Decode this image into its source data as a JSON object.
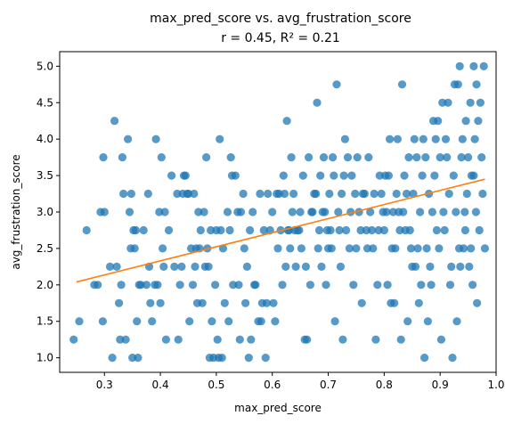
{
  "chart_data": {
    "type": "scatter",
    "title": "max_pred_score vs. avg_frustration_score",
    "subtitle": "r = 0.45,  R² = 0.21",
    "xlabel": "max_pred_score",
    "ylabel": "avg_frustration_score",
    "xlim": [
      0.22,
      1.0
    ],
    "ylim": [
      0.8,
      5.2
    ],
    "x_ticks": [
      0.3,
      0.4,
      0.5,
      0.6,
      0.7,
      0.8,
      0.9,
      1.0
    ],
    "x_tick_labels": [
      "0.3",
      "0.4",
      "0.5",
      "0.6",
      "0.7",
      "0.8",
      "0.9",
      "1.0"
    ],
    "y_ticks": [
      1.0,
      1.5,
      2.0,
      2.5,
      3.0,
      3.5,
      4.0,
      4.5,
      5.0
    ],
    "y_tick_labels": [
      "1.0",
      "1.5",
      "2.0",
      "2.5",
      "3.0",
      "3.5",
      "4.0",
      "4.5",
      "5.0"
    ],
    "grid": false,
    "point_color": "#1f77b4",
    "line_color": "#ff7f0e",
    "fit_line": {
      "x": [
        0.25,
        0.98
      ],
      "y": [
        2.04,
        3.45
      ]
    },
    "points": [
      [
        0.245,
        1.25
      ],
      [
        0.255,
        1.5
      ],
      [
        0.268,
        2.75
      ],
      [
        0.282,
        2.0
      ],
      [
        0.288,
        2.0
      ],
      [
        0.293,
        3.0
      ],
      [
        0.297,
        1.5
      ],
      [
        0.298,
        3.75
      ],
      [
        0.3,
        3.0
      ],
      [
        0.31,
        2.25
      ],
      [
        0.314,
        1.0
      ],
      [
        0.318,
        4.25
      ],
      [
        0.322,
        2.25
      ],
      [
        0.326,
        1.75
      ],
      [
        0.328,
        1.25
      ],
      [
        0.33,
        2.0
      ],
      [
        0.332,
        3.75
      ],
      [
        0.334,
        3.25
      ],
      [
        0.338,
        1.25
      ],
      [
        0.342,
        4.0
      ],
      [
        0.345,
        3.0
      ],
      [
        0.347,
        2.5
      ],
      [
        0.348,
        3.25
      ],
      [
        0.35,
        1.0
      ],
      [
        0.352,
        2.75
      ],
      [
        0.354,
        2.5
      ],
      [
        0.356,
        2.75
      ],
      [
        0.358,
        1.5
      ],
      [
        0.36,
        1.0
      ],
      [
        0.362,
        2.0
      ],
      [
        0.365,
        2.0
      ],
      [
        0.37,
        2.75
      ],
      [
        0.375,
        2.0
      ],
      [
        0.378,
        3.25
      ],
      [
        0.38,
        2.25
      ],
      [
        0.382,
        1.75
      ],
      [
        0.385,
        1.5
      ],
      [
        0.39,
        2.0
      ],
      [
        0.392,
        4.0
      ],
      [
        0.395,
        2.0
      ],
      [
        0.398,
        3.0
      ],
      [
        0.4,
        1.75
      ],
      [
        0.402,
        3.75
      ],
      [
        0.404,
        2.5
      ],
      [
        0.406,
        2.25
      ],
      [
        0.408,
        3.0
      ],
      [
        0.41,
        1.25
      ],
      [
        0.415,
        2.75
      ],
      [
        0.42,
        3.5
      ],
      [
        0.425,
        2.25
      ],
      [
        0.43,
        3.25
      ],
      [
        0.432,
        1.25
      ],
      [
        0.435,
        2.0
      ],
      [
        0.438,
        2.25
      ],
      [
        0.44,
        3.25
      ],
      [
        0.442,
        3.5
      ],
      [
        0.445,
        3.5
      ],
      [
        0.448,
        3.25
      ],
      [
        0.45,
        3.25
      ],
      [
        0.452,
        1.5
      ],
      [
        0.455,
        2.5
      ],
      [
        0.458,
        2.0
      ],
      [
        0.46,
        3.25
      ],
      [
        0.462,
        2.25
      ],
      [
        0.464,
        2.5
      ],
      [
        0.466,
        1.75
      ],
      [
        0.468,
        3.0
      ],
      [
        0.47,
        2.5
      ],
      [
        0.472,
        2.75
      ],
      [
        0.475,
        1.75
      ],
      [
        0.478,
        3.0
      ],
      [
        0.48,
        2.25
      ],
      [
        0.482,
        3.75
      ],
      [
        0.484,
        2.5
      ],
      [
        0.486,
        2.25
      ],
      [
        0.488,
        1.0
      ],
      [
        0.49,
        2.75
      ],
      [
        0.492,
        1.5
      ],
      [
        0.495,
        1.0
      ],
      [
        0.498,
        2.0
      ],
      [
        0.5,
        2.75
      ],
      [
        0.502,
        1.25
      ],
      [
        0.504,
        1.0
      ],
      [
        0.506,
        4.0
      ],
      [
        0.508,
        2.75
      ],
      [
        0.51,
        1.0
      ],
      [
        0.512,
        2.5
      ],
      [
        0.515,
        1.75
      ],
      [
        0.52,
        3.0
      ],
      [
        0.522,
        1.5
      ],
      [
        0.524,
        2.75
      ],
      [
        0.526,
        3.75
      ],
      [
        0.528,
        3.5
      ],
      [
        0.53,
        2.0
      ],
      [
        0.534,
        3.5
      ],
      [
        0.538,
        3.0
      ],
      [
        0.54,
        2.0
      ],
      [
        0.542,
        1.25
      ],
      [
        0.544,
        3.0
      ],
      [
        0.548,
        3.25
      ],
      [
        0.55,
        2.5
      ],
      [
        0.552,
        1.75
      ],
      [
        0.555,
        2.25
      ],
      [
        0.558,
        1.0
      ],
      [
        0.56,
        2.75
      ],
      [
        0.562,
        1.25
      ],
      [
        0.565,
        3.0
      ],
      [
        0.568,
        2.0
      ],
      [
        0.57,
        2.0
      ],
      [
        0.575,
        1.5
      ],
      [
        0.578,
        3.25
      ],
      [
        0.58,
        1.5
      ],
      [
        0.582,
        1.75
      ],
      [
        0.585,
        2.75
      ],
      [
        0.588,
        1.0
      ],
      [
        0.59,
        1.75
      ],
      [
        0.592,
        3.25
      ],
      [
        0.596,
        2.75
      ],
      [
        0.6,
        3.0
      ],
      [
        0.602,
        1.75
      ],
      [
        0.605,
        1.5
      ],
      [
        0.608,
        3.25
      ],
      [
        0.61,
        2.5
      ],
      [
        0.612,
        3.25
      ],
      [
        0.615,
        2.75
      ],
      [
        0.618,
        2.0
      ],
      [
        0.62,
        3.5
      ],
      [
        0.622,
        3.25
      ],
      [
        0.624,
        2.25
      ],
      [
        0.626,
        4.25
      ],
      [
        0.628,
        2.75
      ],
      [
        0.63,
        2.75
      ],
      [
        0.632,
        2.5
      ],
      [
        0.634,
        3.75
      ],
      [
        0.636,
        3.0
      ],
      [
        0.638,
        3.25
      ],
      [
        0.64,
        2.75
      ],
      [
        0.642,
        2.25
      ],
      [
        0.645,
        2.75
      ],
      [
        0.648,
        2.75
      ],
      [
        0.65,
        3.0
      ],
      [
        0.652,
        2.5
      ],
      [
        0.655,
        3.5
      ],
      [
        0.658,
        1.25
      ],
      [
        0.66,
        2.25
      ],
      [
        0.662,
        1.25
      ],
      [
        0.665,
        3.75
      ],
      [
        0.668,
        2.0
      ],
      [
        0.67,
        3.0
      ],
      [
        0.672,
        3.0
      ],
      [
        0.675,
        3.25
      ],
      [
        0.678,
        3.25
      ],
      [
        0.68,
        4.5
      ],
      [
        0.682,
        2.5
      ],
      [
        0.684,
        2.75
      ],
      [
        0.686,
        3.5
      ],
      [
        0.688,
        2.25
      ],
      [
        0.69,
        3.0
      ],
      [
        0.692,
        3.75
      ],
      [
        0.694,
        3.0
      ],
      [
        0.696,
        2.0
      ],
      [
        0.698,
        2.75
      ],
      [
        0.7,
        2.5
      ],
      [
        0.702,
        3.25
      ],
      [
        0.704,
        2.75
      ],
      [
        0.706,
        2.5
      ],
      [
        0.708,
        3.75
      ],
      [
        0.71,
        3.5
      ],
      [
        0.712,
        1.5
      ],
      [
        0.715,
        4.75
      ],
      [
        0.718,
        3.0
      ],
      [
        0.72,
        2.75
      ],
      [
        0.722,
        2.25
      ],
      [
        0.724,
        3.25
      ],
      [
        0.726,
        1.25
      ],
      [
        0.728,
        3.5
      ],
      [
        0.73,
        4.0
      ],
      [
        0.732,
        2.75
      ],
      [
        0.735,
        3.75
      ],
      [
        0.738,
        2.5
      ],
      [
        0.74,
        3.0
      ],
      [
        0.742,
        3.5
      ],
      [
        0.745,
        2.0
      ],
      [
        0.748,
        3.25
      ],
      [
        0.75,
        2.5
      ],
      [
        0.752,
        3.75
      ],
      [
        0.755,
        3.0
      ],
      [
        0.758,
        2.75
      ],
      [
        0.76,
        1.75
      ],
      [
        0.762,
        3.25
      ],
      [
        0.765,
        3.25
      ],
      [
        0.768,
        2.75
      ],
      [
        0.77,
        2.5
      ],
      [
        0.772,
        3.75
      ],
      [
        0.775,
        3.0
      ],
      [
        0.778,
        2.75
      ],
      [
        0.78,
        2.5
      ],
      [
        0.782,
        3.25
      ],
      [
        0.785,
        1.25
      ],
      [
        0.788,
        2.0
      ],
      [
        0.79,
        2.75
      ],
      [
        0.792,
        3.5
      ],
      [
        0.795,
        3.25
      ],
      [
        0.798,
        3.0
      ],
      [
        0.8,
        2.75
      ],
      [
        0.802,
        3.5
      ],
      [
        0.804,
        3.0
      ],
      [
        0.806,
        2.0
      ],
      [
        0.808,
        3.5
      ],
      [
        0.81,
        4.0
      ],
      [
        0.812,
        1.75
      ],
      [
        0.814,
        2.5
      ],
      [
        0.816,
        3.0
      ],
      [
        0.818,
        1.75
      ],
      [
        0.82,
        2.5
      ],
      [
        0.822,
        3.25
      ],
      [
        0.824,
        4.0
      ],
      [
        0.826,
        3.0
      ],
      [
        0.828,
        2.75
      ],
      [
        0.83,
        1.25
      ],
      [
        0.832,
        4.75
      ],
      [
        0.834,
        3.0
      ],
      [
        0.836,
        3.5
      ],
      [
        0.838,
        2.75
      ],
      [
        0.84,
        3.25
      ],
      [
        0.842,
        1.5
      ],
      [
        0.844,
        3.75
      ],
      [
        0.846,
        2.75
      ],
      [
        0.848,
        2.5
      ],
      [
        0.85,
        2.25
      ],
      [
        0.852,
        3.25
      ],
      [
        0.854,
        4.0
      ],
      [
        0.856,
        2.25
      ],
      [
        0.858,
        3.75
      ],
      [
        0.86,
        2.5
      ],
      [
        0.862,
        1.75
      ],
      [
        0.864,
        3.0
      ],
      [
        0.866,
        2.0
      ],
      [
        0.868,
        3.5
      ],
      [
        0.87,
        4.0
      ],
      [
        0.872,
        1.0
      ],
      [
        0.874,
        3.75
      ],
      [
        0.876,
        2.5
      ],
      [
        0.878,
        1.5
      ],
      [
        0.88,
        3.25
      ],
      [
        0.882,
        2.25
      ],
      [
        0.884,
        2.0
      ],
      [
        0.886,
        3.0
      ],
      [
        0.888,
        4.25
      ],
      [
        0.89,
        3.5
      ],
      [
        0.892,
        4.0
      ],
      [
        0.894,
        2.75
      ],
      [
        0.896,
        4.25
      ],
      [
        0.898,
        2.5
      ],
      [
        0.9,
        3.75
      ],
      [
        0.902,
        1.25
      ],
      [
        0.904,
        4.5
      ],
      [
        0.906,
        3.0
      ],
      [
        0.908,
        2.75
      ],
      [
        0.91,
        4.0
      ],
      [
        0.912,
        3.75
      ],
      [
        0.914,
        4.5
      ],
      [
        0.916,
        3.25
      ],
      [
        0.918,
        2.0
      ],
      [
        0.92,
        2.25
      ],
      [
        0.922,
        1.0
      ],
      [
        0.924,
        3.5
      ],
      [
        0.926,
        4.75
      ],
      [
        0.928,
        3.0
      ],
      [
        0.93,
        1.5
      ],
      [
        0.932,
        4.75
      ],
      [
        0.934,
        2.5
      ],
      [
        0.936,
        2.25
      ],
      [
        0.938,
        3.75
      ],
      [
        0.94,
        4.0
      ],
      [
        0.942,
        2.5
      ],
      [
        0.944,
        3.0
      ],
      [
        0.946,
        4.25
      ],
      [
        0.948,
        3.25
      ],
      [
        0.95,
        3.75
      ],
      [
        0.952,
        2.25
      ],
      [
        0.954,
        4.5
      ],
      [
        0.956,
        3.5
      ],
      [
        0.958,
        2.0
      ],
      [
        0.96,
        5.0
      ],
      [
        0.962,
        4.0
      ],
      [
        0.964,
        3.0
      ],
      [
        0.966,
        1.75
      ],
      [
        0.968,
        4.25
      ],
      [
        0.97,
        2.75
      ],
      [
        0.972,
        4.5
      ],
      [
        0.974,
        3.75
      ],
      [
        0.976,
        3.25
      ],
      [
        0.978,
        5.0
      ],
      [
        0.98,
        2.5
      ],
      [
        0.96,
        3.5
      ],
      [
        0.945,
        2.75
      ],
      [
        0.935,
        5.0
      ],
      [
        0.965,
        4.75
      ],
      [
        0.955,
        2.5
      ]
    ]
  }
}
